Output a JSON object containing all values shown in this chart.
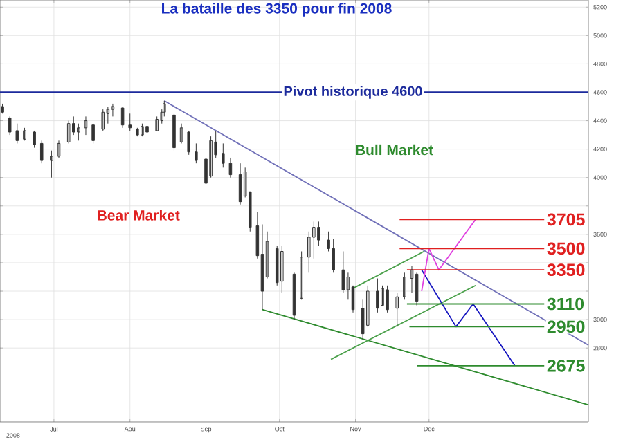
{
  "chart_data": {
    "type": "candlestick",
    "title": "La bataille des 3350 pour fin 2008",
    "color": "#333333",
    "x": [
      "2008-06-10",
      "2008-06-13",
      "2008-06-16",
      "2008-06-19",
      "2008-06-23",
      "2008-06-26",
      "2008-06-30",
      "2008-07-03",
      "2008-07-07",
      "2008-07-09",
      "2008-07-11",
      "2008-07-14",
      "2008-07-17",
      "2008-07-21",
      "2008-07-23",
      "2008-07-25",
      "2008-07-29",
      "2008-08-01",
      "2008-08-04",
      "2008-08-06",
      "2008-08-08",
      "2008-08-12",
      "2008-08-14",
      "2008-08-15",
      "2008-08-19",
      "2008-08-22",
      "2008-08-25",
      "2008-08-28",
      "2008-09-01",
      "2008-09-03",
      "2008-09-05",
      "2008-09-08",
      "2008-09-11",
      "2008-09-15",
      "2008-09-17",
      "2008-09-19",
      "2008-09-22",
      "2008-09-24",
      "2008-09-26",
      "2008-09-30",
      "2008-10-02",
      "2008-10-07",
      "2008-10-10",
      "2008-10-13",
      "2008-10-15",
      "2008-10-17",
      "2008-10-21",
      "2008-10-23",
      "2008-10-27",
      "2008-10-29",
      "2008-10-31",
      "2008-11-04",
      "2008-11-06",
      "2008-11-10",
      "2008-11-12",
      "2008-11-14",
      "2008-11-18",
      "2008-11-21",
      "2008-11-24",
      "2008-11-26"
    ],
    "ohlc": [
      [
        4500,
        4520,
        4450,
        4460
      ],
      [
        4420,
        4430,
        4300,
        4320
      ],
      [
        4330,
        4380,
        4240,
        4260
      ],
      [
        4270,
        4350,
        4260,
        4330
      ],
      [
        4320,
        4330,
        4210,
        4230
      ],
      [
        4240,
        4260,
        4100,
        4120
      ],
      [
        4120,
        4190,
        4000,
        4150
      ],
      [
        4150,
        4260,
        4140,
        4240
      ],
      [
        4250,
        4400,
        4240,
        4380
      ],
      [
        4380,
        4430,
        4300,
        4320
      ],
      [
        4320,
        4380,
        4260,
        4350
      ],
      [
        4350,
        4430,
        4300,
        4400
      ],
      [
        4370,
        4380,
        4240,
        4260
      ],
      [
        4340,
        4480,
        4330,
        4460
      ],
      [
        4450,
        4500,
        4380,
        4480
      ],
      [
        4480,
        4520,
        4430,
        4500
      ],
      [
        4490,
        4500,
        4350,
        4370
      ],
      [
        4370,
        4450,
        4330,
        4350
      ],
      [
        4340,
        4350,
        4290,
        4300
      ],
      [
        4300,
        4380,
        4290,
        4360
      ],
      [
        4360,
        4380,
        4290,
        4320
      ],
      [
        4330,
        4430,
        4330,
        4410
      ],
      [
        4400,
        4480,
        4380,
        4460
      ],
      [
        4460,
        4540,
        4430,
        4520
      ],
      [
        4440,
        4450,
        4190,
        4210
      ],
      [
        4250,
        4380,
        4240,
        4350
      ],
      [
        4320,
        4330,
        4160,
        4180
      ],
      [
        4180,
        4240,
        4100,
        4120
      ],
      [
        4130,
        4190,
        3930,
        3960
      ],
      [
        4010,
        4290,
        4000,
        4260
      ],
      [
        4250,
        4330,
        4140,
        4160
      ],
      [
        4170,
        4240,
        4070,
        4100
      ],
      [
        4100,
        4140,
        4000,
        4020
      ],
      [
        4020,
        4100,
        3810,
        3830
      ],
      [
        3870,
        4070,
        3860,
        4040
      ],
      [
        3900,
        3900,
        3620,
        3650
      ],
      [
        3660,
        3760,
        3430,
        3450
      ],
      [
        3460,
        3670,
        3070,
        3200
      ],
      [
        3300,
        3620,
        3290,
        3550
      ],
      [
        3500,
        3520,
        3240,
        3260
      ],
      [
        3270,
        3520,
        3190,
        3480
      ],
      [
        3320,
        3330,
        3000,
        3030
      ],
      [
        3150,
        3480,
        3140,
        3440
      ],
      [
        3440,
        3620,
        3330,
        3580
      ],
      [
        3580,
        3690,
        3430,
        3650
      ],
      [
        3650,
        3690,
        3520,
        3560
      ],
      [
        3560,
        3620,
        3480,
        3500
      ],
      [
        3500,
        3570,
        3330,
        3350
      ],
      [
        3350,
        3480,
        3190,
        3210
      ],
      [
        3210,
        3330,
        3140,
        3300
      ],
      [
        3230,
        3240,
        3050,
        3070
      ],
      [
        3080,
        3140,
        2860,
        2900
      ],
      [
        2960,
        3240,
        2950,
        3200
      ],
      [
        3200,
        3290,
        3050,
        3080
      ],
      [
        3100,
        3240,
        3100,
        3220
      ],
      [
        3210,
        3240,
        3050,
        3070
      ],
      [
        3080,
        3190,
        2950,
        3160
      ],
      [
        3160,
        3330,
        3140,
        3300
      ],
      [
        3290,
        3380,
        3190,
        3350
      ],
      [
        3320,
        3330,
        3100,
        3130
      ]
    ],
    "series": [
      {
        "type": "line",
        "color": "#7070b8",
        "x": [
          "2008-08-15",
          "2009-02-04"
        ],
        "values": [
          4540,
          2820
        ]
      },
      {
        "type": "line",
        "color": "#2e8b2e",
        "x": [
          "2008-09-24",
          "2009-02-04"
        ],
        "values": [
          3070,
          2400
        ]
      },
      {
        "type": "line",
        "color": "#4aa04a",
        "x": [
          "2008-10-31",
          "2008-11-29"
        ],
        "values": [
          3220,
          3480
        ]
      },
      {
        "type": "line",
        "color": "#4aa04a",
        "x": [
          "2008-10-22",
          "2008-12-20"
        ],
        "values": [
          2720,
          3240
        ]
      },
      {
        "type": "line",
        "color": "#1515c0",
        "x": [
          "2008-11-28",
          "2008-12-12",
          "2008-12-19",
          "2009-01-05"
        ],
        "values": [
          3350,
          2950,
          3110,
          2675
        ]
      },
      {
        "type": "line",
        "color": "#e040e0",
        "x": [
          "2008-11-28",
          "2008-12-01",
          "2008-12-05",
          "2008-12-20"
        ],
        "values": [
          3200,
          3500,
          3350,
          3705
        ]
      },
      {
        "type": "line",
        "color": "#e02020",
        "x": [
          "2008-11-19",
          "2009-01-17"
        ],
        "values": [
          3705,
          3705
        ]
      },
      {
        "type": "line",
        "color": "#e02020",
        "x": [
          "2008-11-19",
          "2009-01-17"
        ],
        "values": [
          3500,
          3500
        ]
      },
      {
        "type": "line",
        "color": "#e02020",
        "x": [
          "2008-11-22",
          "2009-01-17"
        ],
        "values": [
          3350,
          3350
        ]
      },
      {
        "type": "line",
        "color": "#2e8b2e",
        "x": [
          "2008-11-22",
          "2009-01-17"
        ],
        "values": [
          3110,
          3110
        ]
      },
      {
        "type": "line",
        "color": "#2e8b2e",
        "x": [
          "2008-11-23",
          "2009-01-17"
        ],
        "values": [
          2950,
          2950
        ]
      },
      {
        "type": "line",
        "color": "#2e8b2e",
        "x": [
          "2008-11-26",
          "2009-01-17"
        ],
        "values": [
          2675,
          2675
        ]
      }
    ],
    "ref_lines": [
      {
        "axis": "y",
        "value": 4600,
        "label": "Pivot historique 4600",
        "color": "#1c2a9c"
      }
    ],
    "annotations": [
      "Bull Market",
      "Bear Market",
      {
        "text": "3705",
        "x": "2009-01-17",
        "y": 3705
      },
      {
        "text": "3500",
        "x": "2009-01-17",
        "y": 3500
      },
      {
        "text": "3350",
        "x": "2009-01-17",
        "y": 3350
      },
      {
        "text": "3110",
        "x": "2009-01-17",
        "y": 3110
      },
      {
        "text": "2950",
        "x": "2009-01-17",
        "y": 2950
      },
      {
        "text": "2675",
        "x": "2009-01-17",
        "y": 2675
      },
      "2008"
    ],
    "xlim": [
      "2008-06-09",
      "2009-02-04"
    ],
    "xticks": [
      {
        "value": "2008-07-01",
        "label": "Jul"
      },
      {
        "value": "2008-08-01",
        "label": "Aou"
      },
      {
        "value": "2008-09-01",
        "label": "Sep"
      },
      {
        "value": "2008-10-01",
        "label": "Oct"
      },
      {
        "value": "2008-11-01",
        "label": "Nov"
      },
      {
        "value": "2008-12-01",
        "label": "Dec"
      }
    ],
    "ylim": [
      2280,
      5250
    ],
    "yticks": [
      2800,
      3000,
      {
        "value": 3200,
        "label": null
      },
      {
        "value": 3400,
        "label": null
      },
      3600,
      {
        "value": 3800,
        "label": null
      },
      4000,
      4200,
      4400,
      4600,
      4800,
      5000,
      5200
    ],
    "grid": true
  }
}
